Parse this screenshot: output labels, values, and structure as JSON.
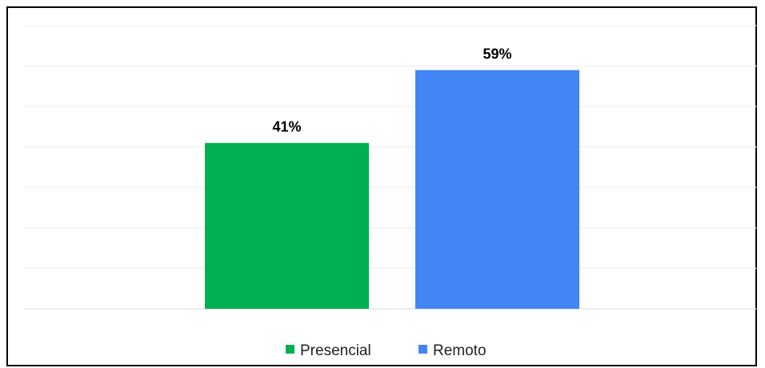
{
  "chart_data": {
    "type": "bar",
    "categories": [
      "Presencial",
      "Remoto"
    ],
    "values": [
      41,
      59
    ],
    "value_labels": [
      "41%",
      "59%"
    ],
    "colors": [
      "#00b050",
      "#4285f4"
    ],
    "title": "",
    "xlabel": "",
    "ylabel": "",
    "ylim": [
      0,
      70
    ],
    "grid": true,
    "legend": {
      "position": "bottom",
      "items": [
        {
          "label": "Presencial",
          "color": "#00b050"
        },
        {
          "label": "Remoto",
          "color": "#4285f4"
        }
      ]
    }
  }
}
